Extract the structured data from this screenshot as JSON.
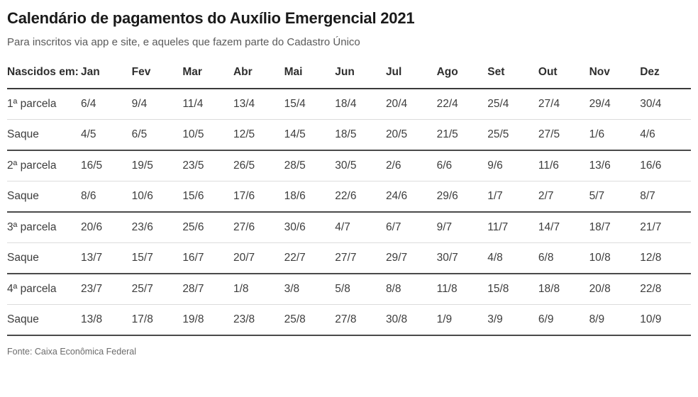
{
  "chart_data": {
    "type": "table",
    "title": "Calendário de pagamentos do Auxílio Emergencial 2021",
    "subtitle": "Para inscritos via app e site, e aqueles que fazem parte do Cadastro Único",
    "source": "Fonte: Caixa Econômica Federal",
    "corner_header": "Nascidos em:",
    "columns": [
      "Jan",
      "Fev",
      "Mar",
      "Abr",
      "Mai",
      "Jun",
      "Jul",
      "Ago",
      "Set",
      "Out",
      "Nov",
      "Dez"
    ],
    "rows": [
      {
        "label": "1ª parcela",
        "values": [
          "6/4",
          "9/4",
          "11/4",
          "13/4",
          "15/4",
          "18/4",
          "20/4",
          "22/4",
          "25/4",
          "27/4",
          "29/4",
          "30/4"
        ]
      },
      {
        "label": "Saque",
        "values": [
          "4/5",
          "6/5",
          "10/5",
          "12/5",
          "14/5",
          "18/5",
          "20/5",
          "21/5",
          "25/5",
          "27/5",
          "1/6",
          "4/6"
        ]
      },
      {
        "label": "2ª parcela",
        "values": [
          "16/5",
          "19/5",
          "23/5",
          "26/5",
          "28/5",
          "30/5",
          "2/6",
          "6/6",
          "9/6",
          "11/6",
          "13/6",
          "16/6"
        ]
      },
      {
        "label": "Saque",
        "values": [
          "8/6",
          "10/6",
          "15/6",
          "17/6",
          "18/6",
          "22/6",
          "24/6",
          "29/6",
          "1/7",
          "2/7",
          "5/7",
          "8/7"
        ]
      },
      {
        "label": "3ª parcela",
        "values": [
          "20/6",
          "23/6",
          "25/6",
          "27/6",
          "30/6",
          "4/7",
          "6/7",
          "9/7",
          "11/7",
          "14/7",
          "18/7",
          "21/7"
        ]
      },
      {
        "label": "Saque",
        "values": [
          "13/7",
          "15/7",
          "16/7",
          "20/7",
          "22/7",
          "27/7",
          "29/7",
          "30/7",
          "4/8",
          "6/8",
          "10/8",
          "12/8"
        ]
      },
      {
        "label": "4ª parcela",
        "values": [
          "23/7",
          "25/7",
          "28/7",
          "1/8",
          "3/8",
          "5/8",
          "8/8",
          "11/8",
          "15/8",
          "18/8",
          "20/8",
          "22/8"
        ]
      },
      {
        "label": "Saque",
        "values": [
          "13/8",
          "17/8",
          "19/8",
          "23/8",
          "25/8",
          "27/8",
          "30/8",
          "1/9",
          "3/9",
          "6/9",
          "8/9",
          "10/9"
        ]
      }
    ]
  },
  "colors": {
    "title_color": "#1a1a1a",
    "subtitle_color": "#5a5a5a",
    "header_text": "#2e2e2e",
    "cell_text": "#3d3d3d",
    "rule_dark": "#3a3a3a",
    "rule_group": "#4a4a4a",
    "rule_light": "#dcdcdc",
    "source_color": "#6b6b6b"
  }
}
